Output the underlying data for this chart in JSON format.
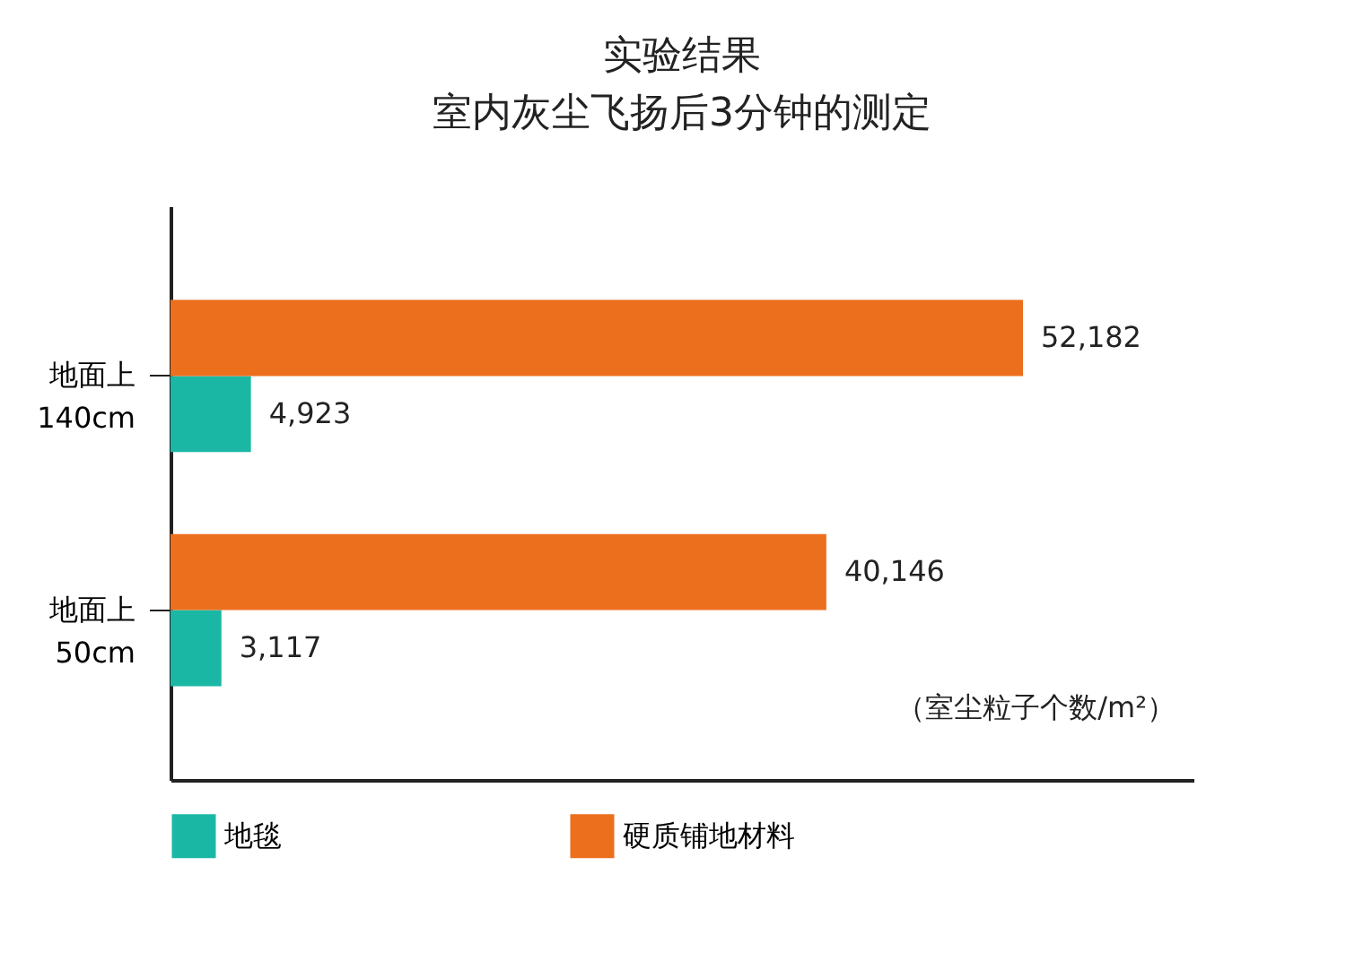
{
  "chart_data": {
    "type": "bar",
    "orientation": "horizontal",
    "title": "实验结果",
    "subtitle": "室内灰尘飞扬后3分钟的测定",
    "categories": [
      "地面上\n140cm",
      "地面上\n50cm"
    ],
    "series": [
      {
        "name": "地毯",
        "color": "#1ab8a4",
        "values": [
          4923,
          3117
        ],
        "value_labels": [
          "4,923",
          "3,117"
        ]
      },
      {
        "name": "硬质铺地材料",
        "color": "#ec6f1e",
        "values": [
          52182,
          40146
        ],
        "value_labels": [
          "52,182",
          "40,146"
        ]
      }
    ],
    "legend": "bottom",
    "grid": false,
    "annotations": [
      "（室尘粒子个数/m²）"
    ]
  }
}
